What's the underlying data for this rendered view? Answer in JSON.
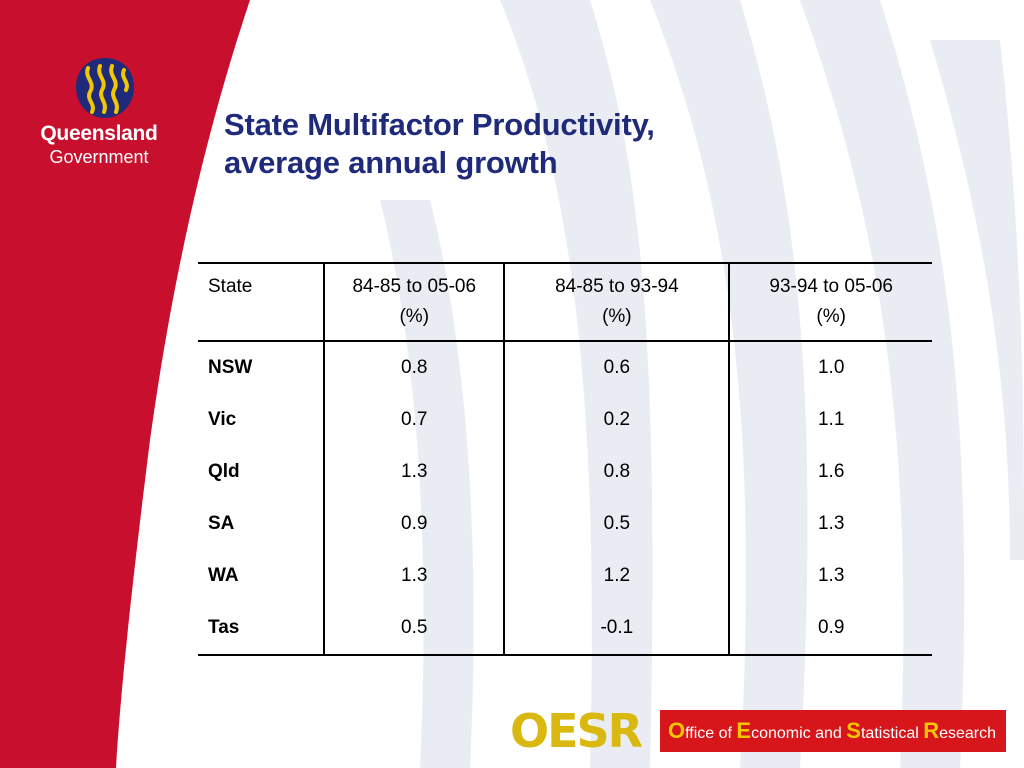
{
  "branding": {
    "gov_name_line1": "Queensland",
    "gov_name_line2": "Government",
    "emblem_icon": "queensland-emblem-icon",
    "colors": {
      "crimson": "#c8102e",
      "title_navy": "#1f2b7a",
      "oesr_gold": "#d9b80f",
      "oesr_red": "#d7161c"
    }
  },
  "slide": {
    "title_line1": "State Multifactor Productivity,",
    "title_line2": "average annual growth"
  },
  "table": {
    "headers": [
      {
        "line1": "State",
        "line2": ""
      },
      {
        "line1": "84-85 to 05-06",
        "line2": "(%)"
      },
      {
        "line1": "84-85 to 93-94",
        "line2": "(%)"
      },
      {
        "line1": "93-94 to 05-06",
        "line2": "(%)"
      }
    ],
    "rows": [
      {
        "state": "NSW",
        "a": "0.8",
        "b": "0.6",
        "c": "1.0"
      },
      {
        "state": "Vic",
        "a": "0.7",
        "b": "0.2",
        "c": "1.1"
      },
      {
        "state": "Qld",
        "a": "1.3",
        "b": "0.8",
        "c": "1.6"
      },
      {
        "state": "SA",
        "a": "0.9",
        "b": "0.5",
        "c": "1.3"
      },
      {
        "state": "WA",
        "a": "1.3",
        "b": "1.2",
        "c": "1.3"
      },
      {
        "state": "Tas",
        "a": "0.5",
        "b": "-0.1",
        "c": "0.9"
      }
    ]
  },
  "footer": {
    "oesr_mark": "OESR",
    "tag_O": "O",
    "tag_ffice": "ffice of ",
    "tag_E": "E",
    "tag_conomic": "conomic and ",
    "tag_S": "S",
    "tag_tatistical": "tatistical ",
    "tag_R": "R",
    "tag_esearch": "esearch"
  }
}
